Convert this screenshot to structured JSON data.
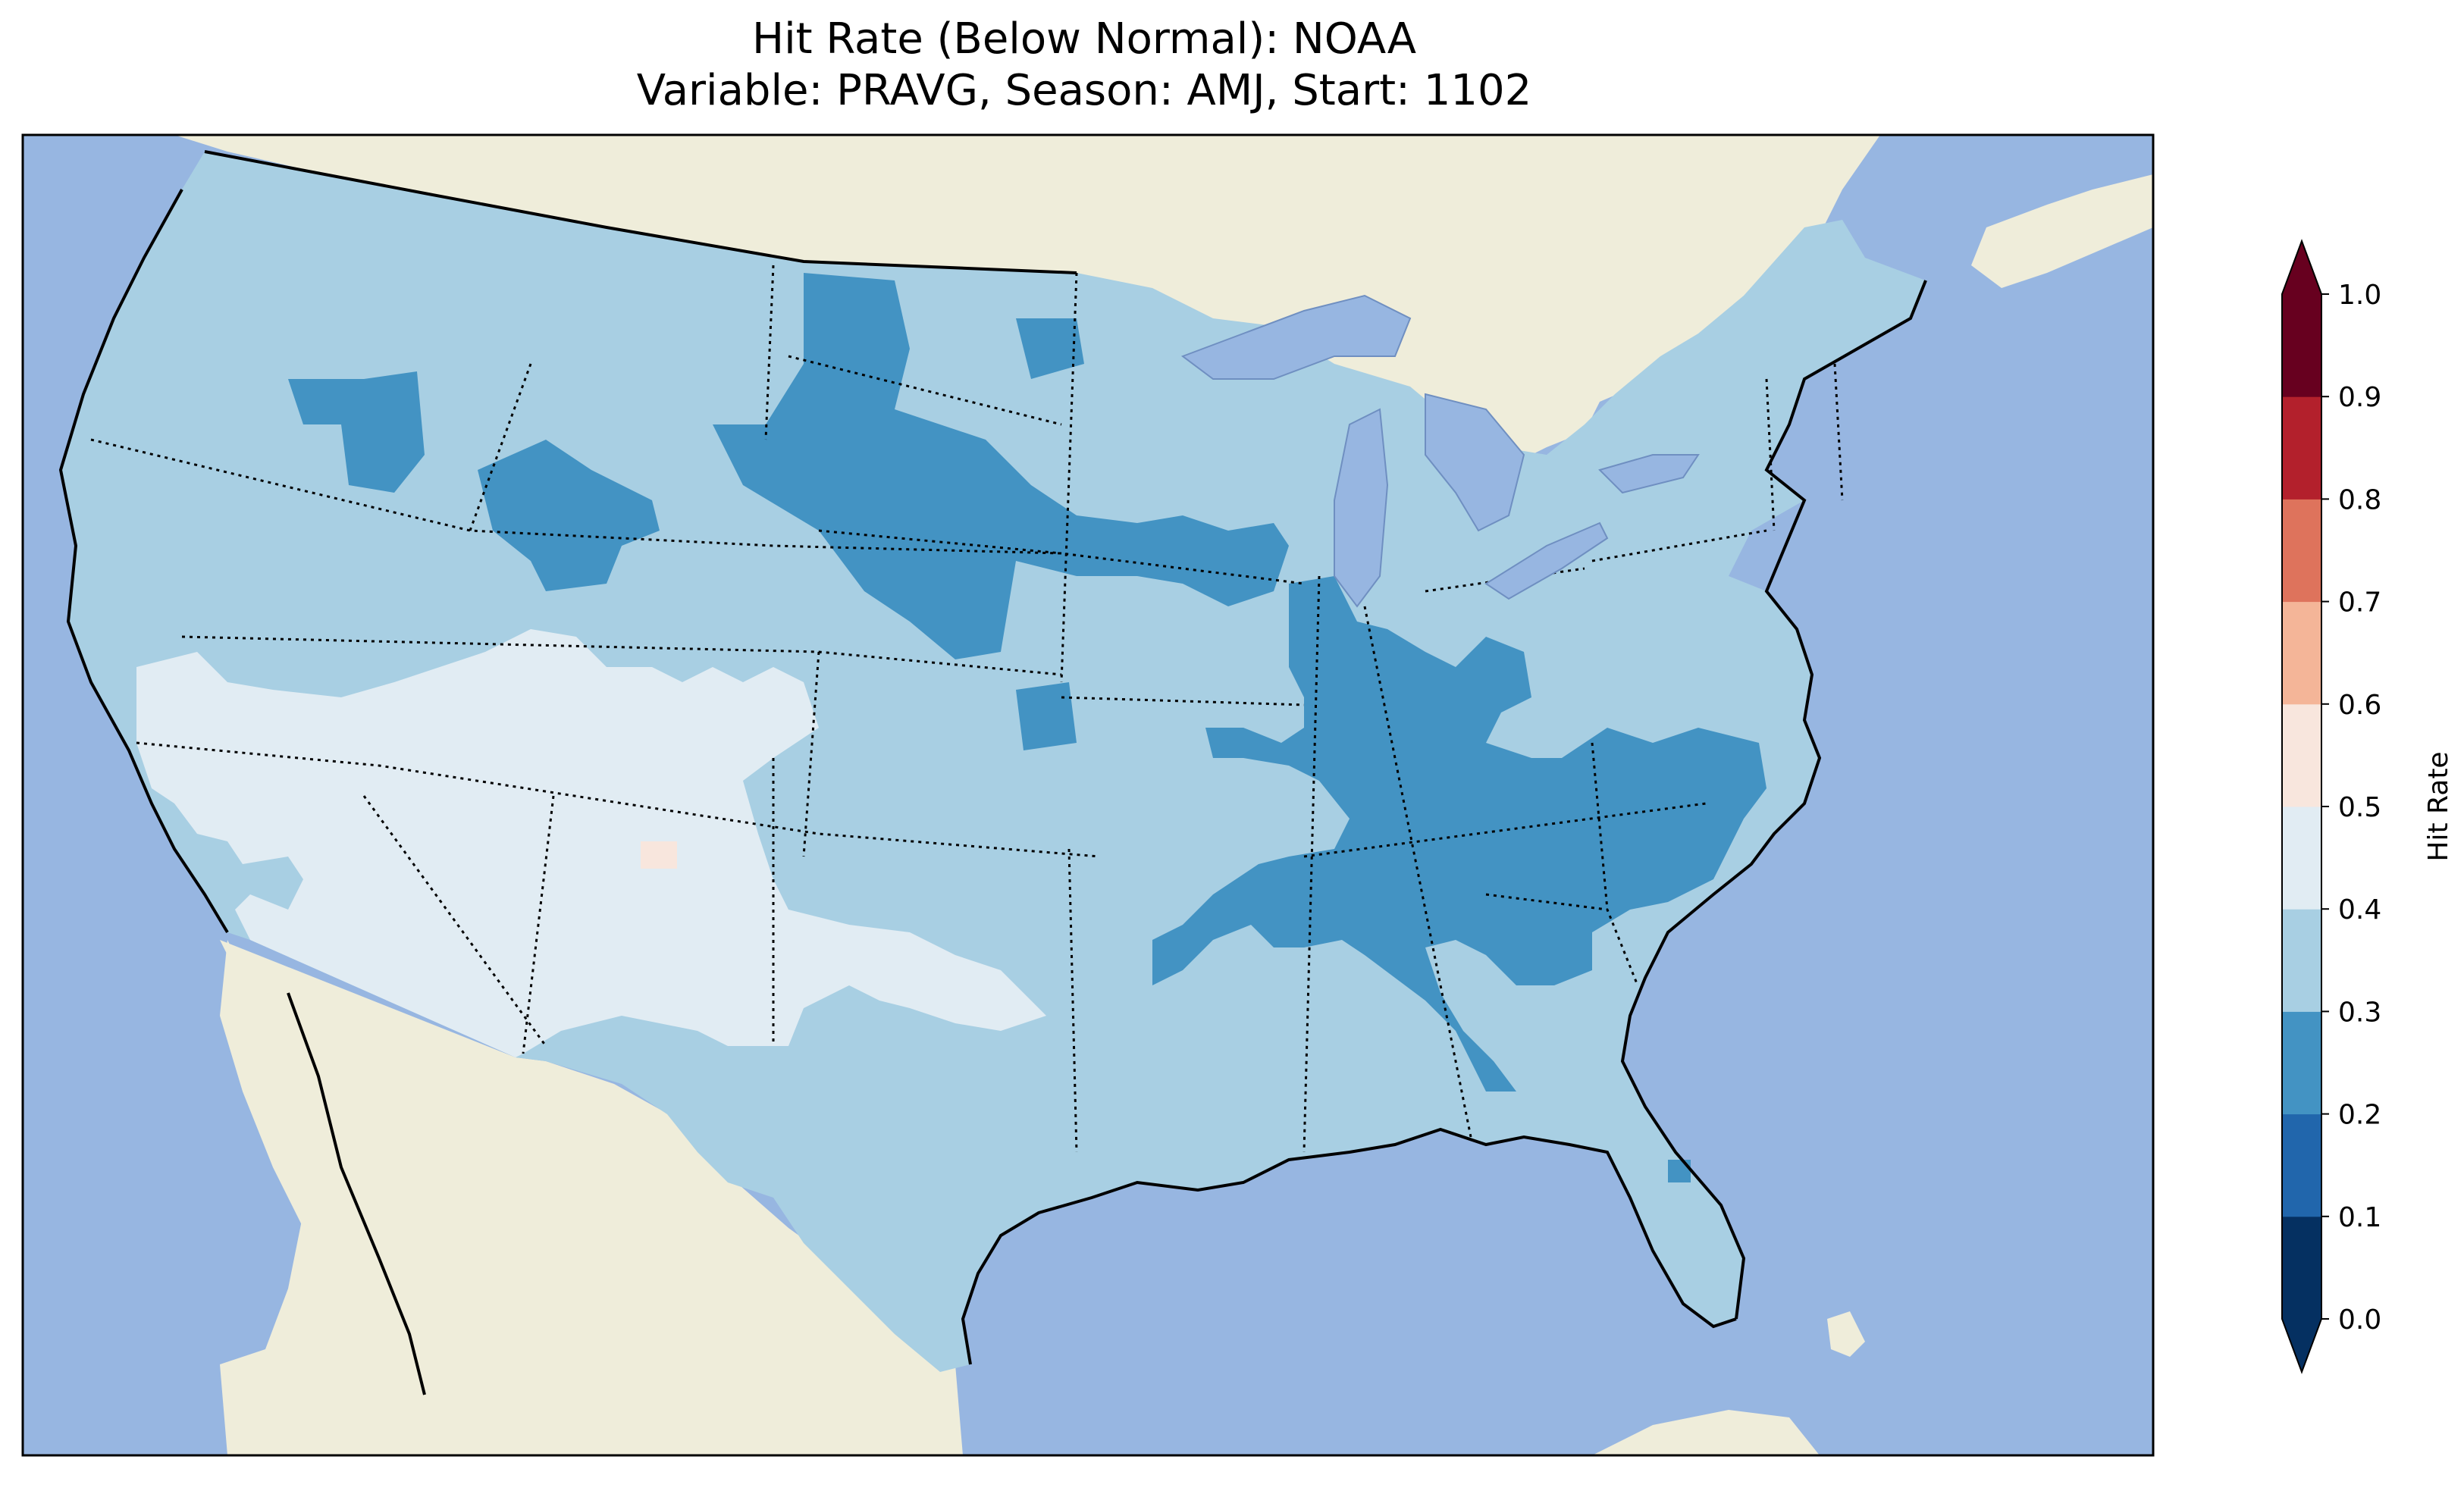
{
  "title": {
    "line1": "Hit Rate (Below Normal): NOAA",
    "line2": "Variable: PRAVG, Season: AMJ, Start: 1102"
  },
  "map": {
    "ocean_color": "#97b6e1",
    "land_color": "#efedda",
    "region_label_hint": "contiguous United States"
  },
  "colorbar": {
    "label": "Hit Rate",
    "extend": "both",
    "ticks": [
      "0.0",
      "0.1",
      "0.2",
      "0.3",
      "0.4",
      "0.5",
      "0.6",
      "0.7",
      "0.8",
      "0.9",
      "1.0"
    ],
    "bins": [
      {
        "range": [
          0.0,
          0.1
        ],
        "color": "#053061"
      },
      {
        "range": [
          0.1,
          0.2
        ],
        "color": "#2166ac"
      },
      {
        "range": [
          0.2,
          0.3
        ],
        "color": "#4393c3"
      },
      {
        "range": [
          0.3,
          0.4
        ],
        "color": "#a8cfe3"
      },
      {
        "range": [
          0.4,
          0.5
        ],
        "color": "#e1ecf3"
      },
      {
        "range": [
          0.5,
          0.6
        ],
        "color": "#f8e6dd"
      },
      {
        "range": [
          0.6,
          0.7
        ],
        "color": "#f4b598"
      },
      {
        "range": [
          0.7,
          0.8
        ],
        "color": "#de735c"
      },
      {
        "range": [
          0.8,
          0.9
        ],
        "color": "#b3202c"
      },
      {
        "range": [
          0.9,
          1.0
        ],
        "color": "#67001f"
      }
    ]
  },
  "chart_data": {
    "type": "heatmap",
    "title": "Hit Rate (Below Normal): NOAA",
    "subtitle": "Variable: PRAVG, Season: AMJ, Start: 1102",
    "colorbar_label": "Hit Rate",
    "value_range": [
      0.0,
      1.0
    ],
    "predominant_value_range": [
      0.3,
      0.4
    ],
    "regions": [
      {
        "area": "Most of CONUS",
        "hit_rate_range": [
          0.3,
          0.4
        ]
      },
      {
        "area": "Southwest (CA, NV, AZ, UT, CO, NM) and west Texas",
        "hit_rate_range": [
          0.4,
          0.5
        ]
      },
      {
        "area": "Northern Plains (MT, WY, ND, SD, NE)",
        "hit_rate_range": [
          0.2,
          0.3
        ]
      },
      {
        "area": "Mississippi & Ohio Valley (IL, IN, KY, TN)",
        "hit_rate_range": [
          0.2,
          0.3
        ]
      },
      {
        "area": "Carolinas / Georgia",
        "hit_rate_range": [
          0.2,
          0.3
        ]
      },
      {
        "area": "Small spot in northern New Mexico",
        "hit_rate_range": [
          0.5,
          0.6
        ]
      }
    ]
  }
}
